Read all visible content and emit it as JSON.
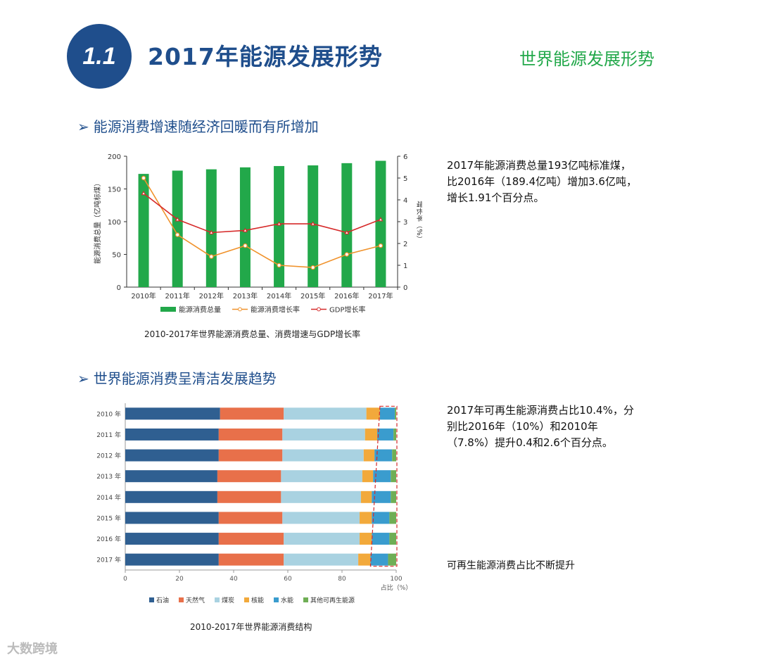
{
  "header": {
    "badge": "1.1",
    "title": "2017年能源发展形势",
    "side_title": "世界能源发展形势"
  },
  "section1": {
    "arrow": "➢",
    "title": "能源消费增速随经济回暖而有所增加",
    "caption": "2010-2017年世界能源消费总量、消费增速与GDP增长率",
    "text_lines": [
      "2017年能源消费总量193亿吨标准煤，",
      "比2016年（189.4亿吨）增加3.6亿吨，",
      "增长1.91个百分点。"
    ]
  },
  "section2": {
    "arrow": "➢",
    "title": "世界能源消费呈清洁发展趋势",
    "caption": "2010-2017年世界能源消费结构",
    "text_lines": [
      "2017年可再生能源消费占比10.4%，分",
      "别比2016年（10%）和2010年",
      "（7.8%）提升0.4和2.6个百分点。"
    ],
    "note": "可再生能源消费占比不断提升"
  },
  "watermark": "大数跨境",
  "chart_data": [
    {
      "type": "bar",
      "categories": [
        "2010年",
        "2011年",
        "2012年",
        "2013年",
        "2014年",
        "2015年",
        "2016年",
        "2017年"
      ],
      "series": [
        {
          "name": "能源消费总量",
          "type": "bar",
          "axis": "left",
          "color": "#22a84a",
          "values": [
            173,
            178,
            180,
            183,
            185,
            186,
            189.4,
            193
          ]
        },
        {
          "name": "能源消费增长率",
          "type": "line",
          "axis": "right",
          "color": "#f0922b",
          "values": [
            5.0,
            2.4,
            1.4,
            1.9,
            1.0,
            0.9,
            1.5,
            1.9
          ]
        },
        {
          "name": "GDP增长率",
          "type": "line",
          "axis": "right",
          "color": "#d62a2a",
          "values": [
            4.3,
            3.1,
            2.5,
            2.6,
            2.9,
            2.9,
            2.5,
            3.1
          ]
        }
      ],
      "ylabel": "能源消费总量（亿吨标煤）",
      "ylabel_right": "增长率（%）",
      "ylim": [
        0,
        200
      ],
      "ylim_right": [
        0,
        6
      ],
      "yticks": [
        "0",
        "50",
        "100",
        "150",
        "200"
      ],
      "yticks_right": [
        "0",
        "1",
        "2",
        "3",
        "4",
        "5",
        "6"
      ],
      "legend_labels": [
        "能源消费总量",
        "能源消费增长率",
        "GDP增长率"
      ]
    },
    {
      "type": "bar",
      "orientation": "horizontal",
      "stacked": true,
      "categories": [
        "2010 年",
        "2011 年",
        "2012 年",
        "2013 年",
        "2014 年",
        "2015 年",
        "2016 年",
        "2017 年"
      ],
      "series": [
        {
          "name": "石油",
          "color": "#2f5f91",
          "values": [
            35,
            34.5,
            34.5,
            34,
            34,
            34.5,
            34.5,
            34.5
          ]
        },
        {
          "name": "天然气",
          "color": "#e8704a",
          "values": [
            23.5,
            23.5,
            23.5,
            23.5,
            23.5,
            23.5,
            24,
            24
          ]
        },
        {
          "name": "煤炭",
          "color": "#a9d2e1",
          "values": [
            30.5,
            30.5,
            30,
            30,
            29.5,
            28.5,
            28,
            27.5
          ]
        },
        {
          "name": "核能",
          "color": "#f2a93b",
          "values": [
            5,
            4.5,
            4,
            4,
            4,
            4.5,
            4.5,
            4.5
          ]
        },
        {
          "name": "水能",
          "color": "#3a9cce",
          "values": [
            5.5,
            6,
            6.5,
            6.5,
            7,
            6.5,
            6.5,
            6.5
          ]
        },
        {
          "name": "其他可再生能源",
          "color": "#6fae55",
          "values": [
            0.5,
            1,
            1.5,
            2,
            2,
            2.5,
            2.5,
            3
          ]
        }
      ],
      "xlabel": "占比（%）",
      "xlim": [
        0,
        100
      ],
      "xticks": [
        "0",
        "20",
        "40",
        "60",
        "80",
        "100"
      ],
      "legend_labels": [
        "石油",
        "天然气",
        "煤炭",
        "核能",
        "水能",
        "其他可再生能源"
      ]
    }
  ]
}
